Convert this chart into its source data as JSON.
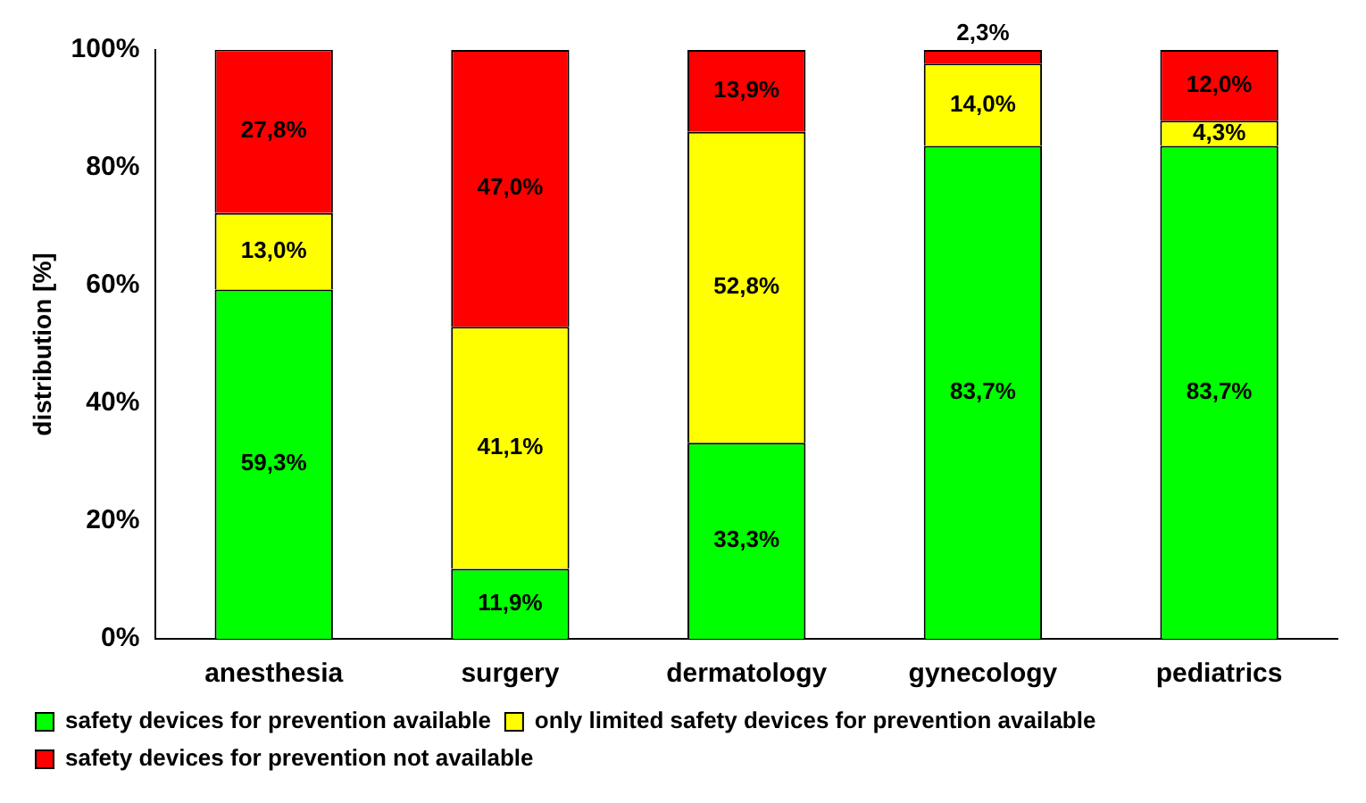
{
  "chart_data": {
    "type": "bar",
    "stacked": true,
    "ylabel": "distribution [%]",
    "categories": [
      "anesthesia",
      "surgery",
      "dermatology",
      "gynecology",
      "pediatrics"
    ],
    "series": [
      {
        "name": "safety devices for prevention available",
        "color": "#00ff00",
        "values": [
          59.3,
          11.9,
          33.3,
          83.7,
          83.7
        ],
        "value_labels": [
          "59,3%",
          "11,9%",
          "33,3%",
          "83,7%",
          "83,7%"
        ]
      },
      {
        "name": "only limited safety devices for prevention available",
        "color": "#ffff00",
        "values": [
          13.0,
          41.1,
          52.8,
          14.0,
          4.3
        ],
        "value_labels": [
          "13,0%",
          "41,1%",
          "52,8%",
          "14,0%",
          "4,3%"
        ]
      },
      {
        "name": "safety devices for prevention not available",
        "color": "#ff0000",
        "values": [
          27.8,
          47.0,
          13.9,
          2.3,
          12.0
        ],
        "value_labels": [
          "27,8%",
          "47,0%",
          "13,9%",
          "2,3%",
          "12,0%"
        ]
      }
    ],
    "ylim": [
      0,
      100
    ],
    "yticks": [
      {
        "value": 0,
        "label": "0%"
      },
      {
        "value": 20,
        "label": "20%"
      },
      {
        "value": 40,
        "label": "40%"
      },
      {
        "value": 60,
        "label": "60%"
      },
      {
        "value": 80,
        "label": "80%"
      },
      {
        "value": 100,
        "label": "100%"
      }
    ],
    "grid": false,
    "legend": "bottom"
  }
}
